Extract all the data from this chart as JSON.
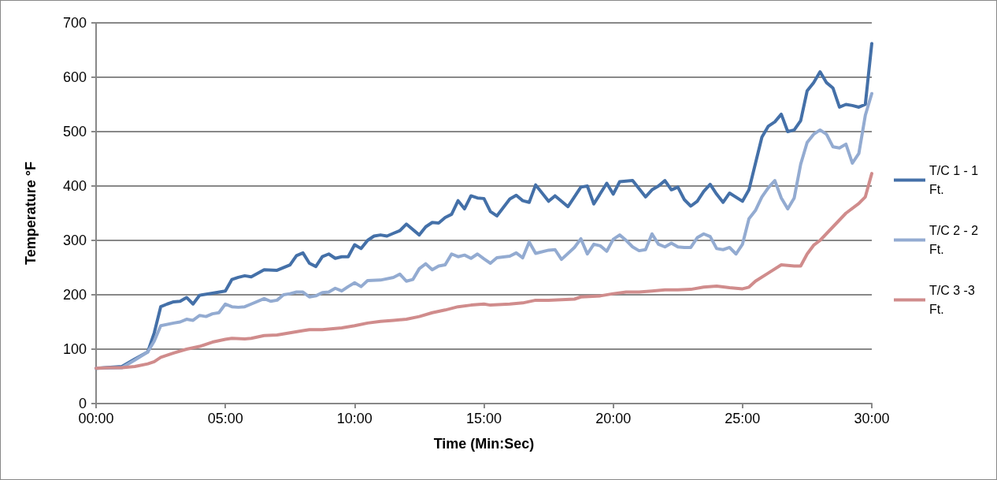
{
  "chart_data": {
    "type": "line",
    "xlabel": "Time (Min:Sec)",
    "ylabel": "Temperature °F",
    "xlim": [
      0,
      30
    ],
    "xticks": [
      {
        "value": 0,
        "label": "00:00"
      },
      {
        "value": 5,
        "label": "05:00"
      },
      {
        "value": 10,
        "label": "10:00"
      },
      {
        "value": 15,
        "label": "15:00"
      },
      {
        "value": 20,
        "label": "20:00"
      },
      {
        "value": 25,
        "label": "25:00"
      },
      {
        "value": 30,
        "label": "30:00"
      }
    ],
    "ylim": [
      0,
      700
    ],
    "yticks": [
      0,
      100,
      200,
      300,
      400,
      500,
      600,
      700
    ],
    "grid": "y",
    "legend": "right",
    "marker": "none",
    "line_style": "solid",
    "series": [
      {
        "name": "T/C 1 - 1 Ft.",
        "color": "#4470a8",
        "x": [
          0,
          1,
          1.5,
          2,
          2.25,
          2.5,
          2.75,
          3,
          3.25,
          3.5,
          3.75,
          4,
          4.5,
          5,
          5.25,
          5.5,
          5.75,
          6,
          6.5,
          7,
          7.5,
          7.75,
          8,
          8.25,
          8.5,
          8.75,
          9,
          9.25,
          9.5,
          9.75,
          10,
          10.25,
          10.5,
          10.75,
          11,
          11.25,
          11.5,
          11.75,
          12,
          12.5,
          12.75,
          13,
          13.25,
          13.5,
          13.75,
          14,
          14.25,
          14.5,
          14.75,
          15,
          15.25,
          15.5,
          16,
          16.25,
          16.5,
          16.75,
          17,
          17.5,
          17.75,
          18.25,
          18.75,
          19,
          19.25,
          19.75,
          20,
          20.25,
          20.75,
          21.25,
          21.5,
          21.75,
          22,
          22.25,
          22.5,
          22.75,
          23,
          23.25,
          23.5,
          23.75,
          24,
          24.25,
          24.5,
          25,
          25.25,
          25.75,
          26,
          26.25,
          26.5,
          26.75,
          27,
          27.25,
          27.5,
          27.75,
          28,
          28.25,
          28.5,
          28.75,
          29,
          29.25,
          29.5,
          29.75,
          30
        ],
        "values": [
          65,
          68,
          82,
          95,
          130,
          178,
          183,
          187,
          188,
          195,
          183,
          199,
          203,
          207,
          228,
          232,
          235,
          233,
          246,
          245,
          255,
          272,
          277,
          258,
          252,
          270,
          275,
          267,
          270,
          270,
          292,
          285,
          300,
          308,
          310,
          308,
          313,
          318,
          330,
          310,
          325,
          333,
          332,
          342,
          348,
          373,
          358,
          382,
          378,
          377,
          353,
          345,
          376,
          383,
          373,
          370,
          402,
          372,
          382,
          362,
          398,
          400,
          367,
          405,
          385,
          408,
          410,
          380,
          393,
          400,
          410,
          393,
          398,
          375,
          363,
          372,
          390,
          403,
          385,
          370,
          387,
          372,
          393,
          490,
          510,
          518,
          532,
          500,
          503,
          520,
          575,
          590,
          610,
          590,
          580,
          545,
          550,
          548,
          545,
          550,
          662
        ]
      },
      {
        "name": "T/C 2 - 2 Ft.",
        "color": "#93abd1",
        "x": [
          0,
          1,
          1.5,
          2,
          2.25,
          2.5,
          3,
          3.25,
          3.5,
          3.75,
          4,
          4.25,
          4.5,
          4.75,
          5,
          5.25,
          5.5,
          5.75,
          6,
          6.5,
          6.75,
          7,
          7.25,
          7.5,
          7.75,
          8,
          8.25,
          8.5,
          8.75,
          9,
          9.25,
          9.5,
          9.75,
          10,
          10.25,
          10.5,
          11,
          11.5,
          11.75,
          12,
          12.25,
          12.5,
          12.75,
          13,
          13.25,
          13.5,
          13.75,
          14,
          14.25,
          14.5,
          14.75,
          15,
          15.25,
          15.5,
          16,
          16.25,
          16.5,
          16.75,
          17,
          17.5,
          17.75,
          18,
          18.5,
          18.75,
          19,
          19.25,
          19.5,
          19.75,
          20,
          20.25,
          20.5,
          20.75,
          21,
          21.25,
          21.5,
          21.75,
          22,
          22.25,
          22.5,
          22.75,
          23,
          23.25,
          23.5,
          23.75,
          24,
          24.25,
          24.5,
          24.75,
          25,
          25.25,
          25.5,
          25.75,
          26,
          26.25,
          26.5,
          26.75,
          27,
          27.25,
          27.5,
          27.75,
          28,
          28.25,
          28.5,
          28.75,
          29,
          29.25,
          29.5,
          29.75,
          30
        ],
        "values": [
          65,
          66,
          80,
          95,
          115,
          143,
          148,
          150,
          155,
          153,
          162,
          160,
          165,
          167,
          183,
          178,
          177,
          178,
          183,
          193,
          188,
          190,
          200,
          202,
          205,
          205,
          196,
          198,
          204,
          205,
          212,
          207,
          215,
          222,
          215,
          226,
          227,
          232,
          238,
          225,
          228,
          248,
          257,
          246,
          253,
          255,
          275,
          270,
          273,
          267,
          275,
          266,
          258,
          268,
          271,
          277,
          268,
          297,
          276,
          282,
          283,
          265,
          287,
          303,
          275,
          293,
          290,
          280,
          302,
          310,
          300,
          288,
          281,
          283,
          312,
          293,
          288,
          295,
          288,
          287,
          287,
          305,
          312,
          307,
          285,
          283,
          287,
          275,
          293,
          340,
          355,
          380,
          397,
          410,
          378,
          358,
          378,
          440,
          480,
          495,
          503,
          495,
          472,
          470,
          477,
          442,
          460,
          530,
          570
        ]
      },
      {
        "name": "T/C 3 -3 Ft.",
        "color": "#d08c8c",
        "x": [
          0,
          0.5,
          1,
          1.5,
          2,
          2.25,
          2.5,
          3,
          3.5,
          4,
          4.5,
          5,
          5.25,
          5.75,
          6,
          6.5,
          7,
          7.5,
          8,
          8.25,
          8.75,
          9.5,
          10,
          10.5,
          11,
          11.5,
          12,
          12.5,
          13,
          13.5,
          14,
          14.5,
          15,
          15.25,
          16,
          16.5,
          17,
          17.5,
          18,
          18.5,
          18.75,
          19.5,
          20,
          20.5,
          21,
          21.5,
          22,
          22.5,
          23,
          23.5,
          24,
          24.5,
          25,
          25.25,
          25.5,
          26,
          26.5,
          27,
          27.25,
          27.5,
          27.75,
          28,
          28.5,
          29,
          29.5,
          29.75,
          30
        ],
        "values": [
          65,
          66,
          66,
          68,
          73,
          77,
          85,
          93,
          100,
          105,
          113,
          118,
          120,
          119,
          120,
          125,
          126,
          130,
          134,
          136,
          136,
          139,
          143,
          148,
          151,
          153,
          155,
          160,
          167,
          172,
          178,
          181,
          183,
          181,
          183,
          185,
          190,
          190,
          191,
          192,
          196,
          198,
          202,
          205,
          205,
          207,
          209,
          209,
          210,
          214,
          216,
          213,
          211,
          214,
          225,
          240,
          255,
          253,
          253,
          275,
          291,
          300,
          325,
          350,
          368,
          380,
          423
        ]
      }
    ]
  }
}
